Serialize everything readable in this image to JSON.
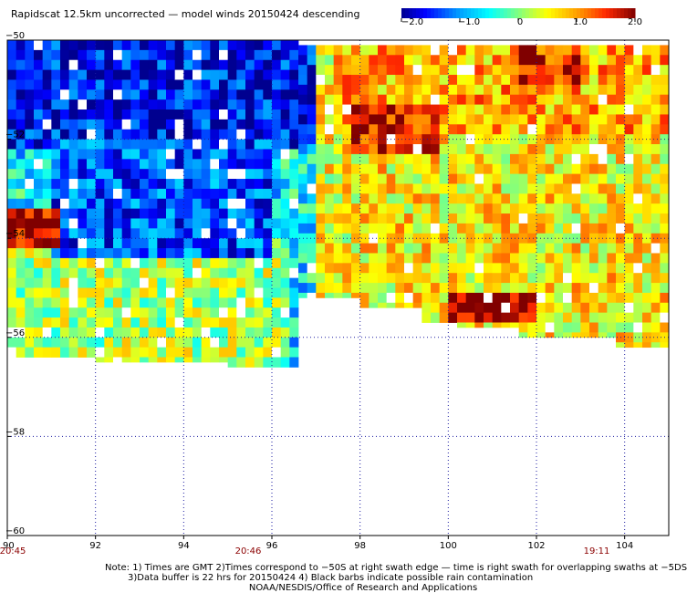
{
  "title": "Rapidscat 12.5km uncorrected — model winds 20150424 descending",
  "colorbar": {
    "labels": [
      "−2.0",
      "−1.0",
      "0",
      "1.0",
      "2.0"
    ],
    "values": [
      -2.0,
      -1.0,
      0,
      1.0,
      2.0
    ],
    "colors": [
      "#00008f",
      "#0000ff",
      "#00a0ff",
      "#00ffff",
      "#80ff80",
      "#ffff00",
      "#ffa000",
      "#ff3000",
      "#a00000",
      "#800000"
    ]
  },
  "times": {
    "left": "20:45",
    "middle": "20:46",
    "right": "19:11"
  },
  "notes": {
    "line1": "Note: 1) Times are GMT 2)Times correspond to −50S at right swath edge — time is right swath for overlapping swaths at −5DS",
    "line2": "3)Data buffer is 22 hrs for 20150424 4) Black barbs indicate possible rain contamination",
    "line3": "NOAA/NESDIS/Office of Research and Applications"
  },
  "chart_data": {
    "type": "heatmap",
    "title": "Rapidscat 12.5km uncorrected — model winds 20150424 descending",
    "xlabel": "",
    "ylabel": "",
    "xlim": [
      90,
      105
    ],
    "ylim": [
      -60,
      -50
    ],
    "grid": true,
    "x_ticks": [
      90,
      92,
      94,
      96,
      98,
      100,
      102,
      104
    ],
    "x_tick_labels": [
      "90",
      "92",
      "94",
      "96",
      "98",
      "100",
      "102",
      "104"
    ],
    "y_ticks": [
      -50,
      -52,
      -54,
      -56,
      -58,
      -60
    ],
    "y_tick_labels": [
      "−50",
      "−52",
      "−54",
      "−56",
      "−58",
      "−60"
    ],
    "value_range": [
      -2.0,
      2.0
    ],
    "cell_size_deg": 0.2,
    "coverage_bottom_lat": [
      [
        90.0,
        -56.4
      ],
      [
        92.0,
        -56.4
      ],
      [
        92.0,
        -56.5
      ],
      [
        95.0,
        -56.5
      ],
      [
        95.0,
        -56.6
      ],
      [
        96.6,
        -56.6
      ],
      [
        96.6,
        -55.2
      ],
      [
        98.0,
        -55.2
      ],
      [
        98.0,
        -55.4
      ],
      [
        99.4,
        -55.4
      ],
      [
        99.4,
        -55.7
      ],
      [
        100.2,
        -55.7
      ],
      [
        100.2,
        -55.8
      ],
      [
        101.6,
        -55.8
      ],
      [
        101.6,
        -56.0
      ],
      [
        103.8,
        -56.0
      ],
      [
        103.8,
        -56.2
      ],
      [
        105.0,
        -56.2
      ]
    ],
    "top_gap_to": [
      [
        90.0,
        -50.0
      ],
      [
        96.6,
        -50.0
      ],
      [
        96.6,
        -50.1
      ],
      [
        105.0,
        -50.1
      ]
    ],
    "regions": [
      {
        "lon": [
          90.0,
          97.0
        ],
        "lat": [
          -52.2,
          -50.0
        ],
        "value": -1.6
      },
      {
        "lon": [
          91.0,
          96.0
        ],
        "lat": [
          -54.4,
          -52.0
        ],
        "value": -1.3
      },
      {
        "lon": [
          97.5,
          105.0
        ],
        "lat": [
          -52.0,
          -50.0
        ],
        "value": 0.9
      },
      {
        "lon": [
          97.8,
          99.8
        ],
        "lat": [
          -52.4,
          -51.4
        ],
        "value": 1.6
      },
      {
        "lon": [
          101.5,
          103.0
        ],
        "lat": [
          -50.9,
          -50.1
        ],
        "value": 1.5
      },
      {
        "lon": [
          90.0,
          91.3
        ],
        "lat": [
          -54.3,
          -53.4
        ],
        "value": 1.8
      },
      {
        "lon": [
          100.0,
          102.0
        ],
        "lat": [
          -55.8,
          -55.2
        ],
        "value": 1.9
      },
      {
        "lon": [
          90.0,
          96.5
        ],
        "lat": [
          -56.6,
          -54.0
        ],
        "value": 0.2
      },
      {
        "lon": [
          98.0,
          105.0
        ],
        "lat": [
          -56.2,
          -52.0
        ],
        "value": 0.6
      }
    ]
  }
}
